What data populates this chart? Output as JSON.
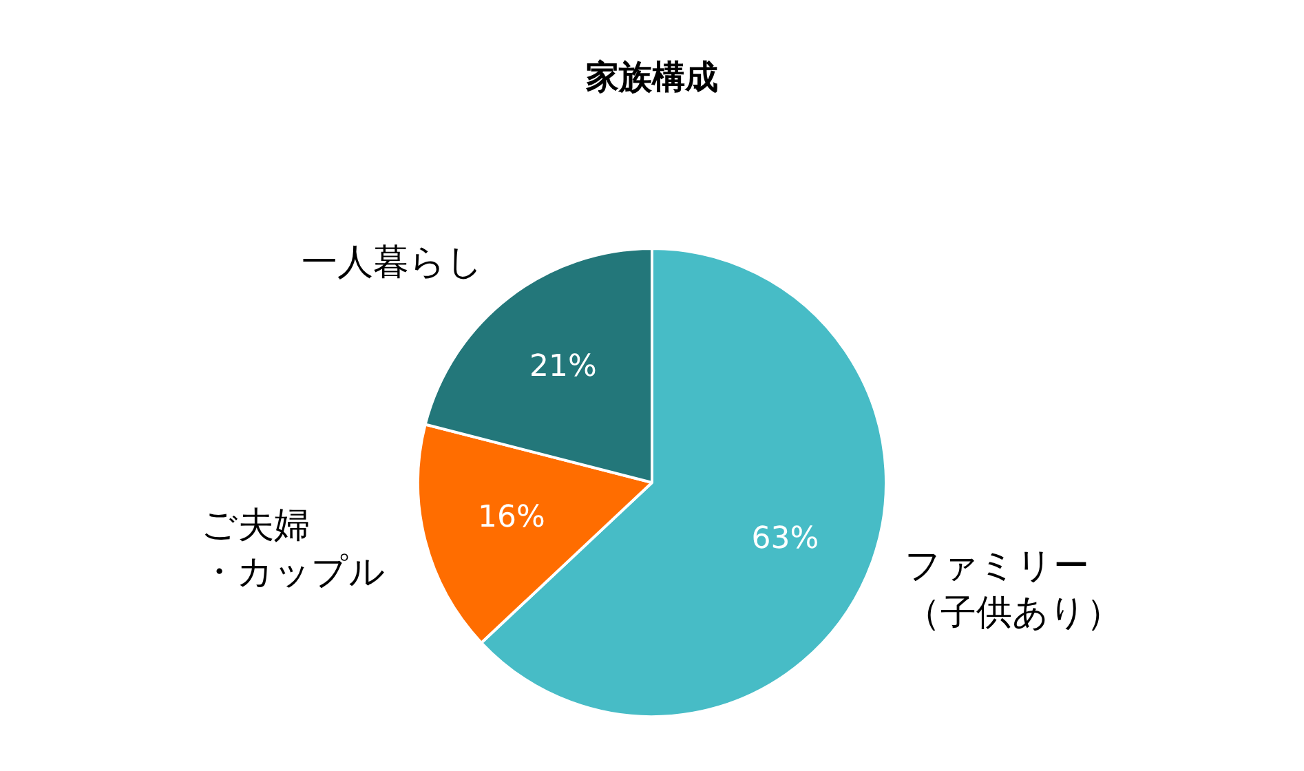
{
  "chart_data": {
    "type": "pie",
    "title": "家族構成",
    "categories": [
      "ファミリー（子供あり）",
      "ご夫婦・カップル",
      "一人暮らし"
    ],
    "values": [
      63,
      16,
      21
    ],
    "colors": [
      "#47bcc6",
      "#ff6d00",
      "#23777a"
    ],
    "value_labels": [
      "63%",
      "16%",
      "21%"
    ],
    "legend": false
  }
}
